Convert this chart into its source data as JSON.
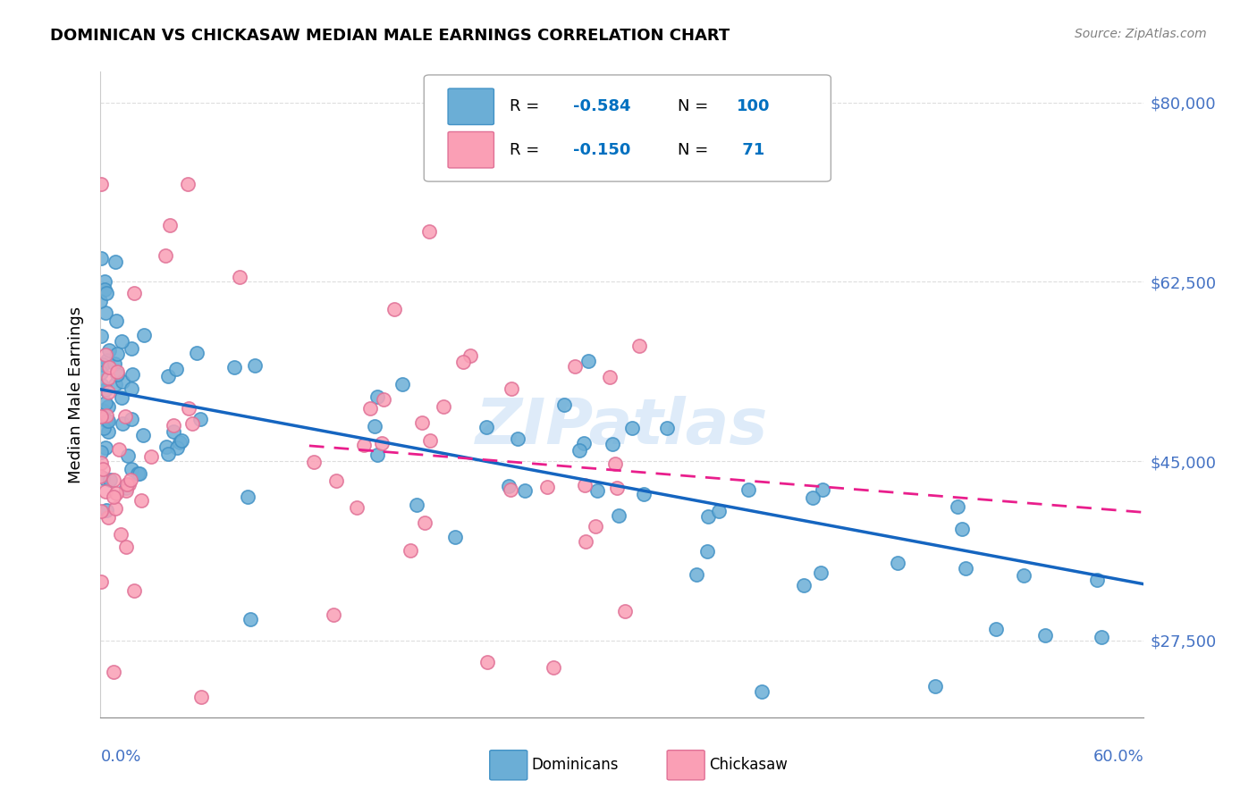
{
  "title": "DOMINICAN VS CHICKASAW MEDIAN MALE EARNINGS CORRELATION CHART",
  "source": "Source: ZipAtlas.com",
  "ylabel": "Median Male Earnings",
  "yticks": [
    27500,
    45000,
    62500,
    80000
  ],
  "ytick_labels": [
    "$27,500",
    "$45,000",
    "$62,500",
    "$80,000"
  ],
  "xmin": 0.0,
  "xmax": 0.6,
  "ymin": 20000,
  "ymax": 83000,
  "blue_color": "#6baed6",
  "pink_color": "#fa9fb5",
  "blue_edge": "#4292c6",
  "pink_edge": "#e07096",
  "axis_color": "#4472c4",
  "legend_R_color": "#0070c0",
  "legend_N_color": "#0070c0",
  "blue_R": -0.584,
  "blue_N": 100,
  "pink_R": -0.15,
  "pink_N": 71,
  "watermark": "ZIPatlas",
  "legend_label_blue": "Dominicans",
  "legend_label_pink": "Chickasaw",
  "blue_line_x0": 0.0,
  "blue_line_y0": 52000,
  "blue_line_x1": 0.6,
  "blue_line_y1": 33000,
  "pink_line_x0": 0.12,
  "pink_line_y0": 46500,
  "pink_line_x1": 0.6,
  "pink_line_y1": 40000
}
